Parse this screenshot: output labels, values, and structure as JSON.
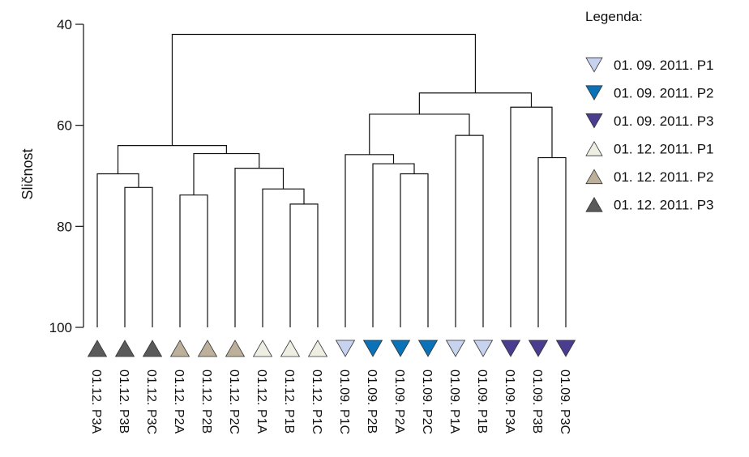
{
  "chart_data": {
    "type": "dendrogram",
    "ylabel": "Sličnost",
    "yticks": [
      40,
      60,
      80,
      100
    ],
    "ylim": [
      40,
      100
    ],
    "y_inverted": true,
    "legend_title": "Legenda:",
    "legend": [
      {
        "group": "g1",
        "label": "01. 09. 2011. P1",
        "shape": "triangle-down",
        "color": "#c7d2ee"
      },
      {
        "group": "g2",
        "label": "01. 09. 2011. P2",
        "shape": "triangle-down",
        "color": "#0a72b8"
      },
      {
        "group": "g3",
        "label": "01. 09. 2011. P3",
        "shape": "triangle-down",
        "color": "#4a3c8f"
      },
      {
        "group": "g4",
        "label": "01. 12. 2011. P1",
        "shape": "triangle-up",
        "color": "#efeee2"
      },
      {
        "group": "g5",
        "label": "01. 12. 2011. P2",
        "shape": "triangle-up",
        "color": "#bcb09a"
      },
      {
        "group": "g6",
        "label": "01. 12. 2011. P3",
        "shape": "triangle-up",
        "color": "#5a5a5a"
      }
    ],
    "leaves": [
      {
        "label": "01.12. P3A",
        "group": "g6"
      },
      {
        "label": "01.12. P3B",
        "group": "g6"
      },
      {
        "label": "01.12. P3C",
        "group": "g6"
      },
      {
        "label": "01.12. P2A",
        "group": "g5"
      },
      {
        "label": "01.12. P2B",
        "group": "g5"
      },
      {
        "label": "01.12. P2C",
        "group": "g5"
      },
      {
        "label": "01.12. P1A",
        "group": "g4"
      },
      {
        "label": "01.12. P1B",
        "group": "g4"
      },
      {
        "label": "01.12. P1C",
        "group": "g4"
      },
      {
        "label": "01.09. P1C",
        "group": "g1"
      },
      {
        "label": "01.09. P2B",
        "group": "g2"
      },
      {
        "label": "01.09. P2A",
        "group": "g2"
      },
      {
        "label": "01.09. P2C",
        "group": "g2"
      },
      {
        "label": "01.09. P1A",
        "group": "g1"
      },
      {
        "label": "01.09. P1B",
        "group": "g1"
      },
      {
        "label": "01.09. P3A",
        "group": "g3"
      },
      {
        "label": "01.09. P3B",
        "group": "g3"
      },
      {
        "label": "01.09. P3C",
        "group": "g3"
      }
    ],
    "merges": [
      {
        "id": "m1",
        "left": 1,
        "right": 2,
        "height": 72.3
      },
      {
        "id": "m2",
        "left": 0,
        "right": "m1",
        "height": 69.6
      },
      {
        "id": "m3",
        "left": 7,
        "right": 8,
        "height": 75.6
      },
      {
        "id": "m4",
        "left": 6,
        "right": "m3",
        "height": 72.6
      },
      {
        "id": "m5",
        "left": 5,
        "right": "m4",
        "height": 68.5
      },
      {
        "id": "m6",
        "left": 3,
        "right": 4,
        "height": 73.8
      },
      {
        "id": "m7",
        "left": "m6",
        "right": "m5",
        "height": 65.6
      },
      {
        "id": "m8",
        "left": "m2",
        "right": "m7",
        "height": 64.0
      },
      {
        "id": "m9",
        "left": 11,
        "right": 12,
        "height": 69.6
      },
      {
        "id": "m10",
        "left": 10,
        "right": "m9",
        "height": 67.6
      },
      {
        "id": "m11",
        "left": 9,
        "right": "m10",
        "height": 65.8
      },
      {
        "id": "m12",
        "left": 13,
        "right": 14,
        "height": 62.0
      },
      {
        "id": "m13",
        "left": "m11",
        "right": "m12",
        "height": 57.8
      },
      {
        "id": "m14",
        "left": 16,
        "right": 17,
        "height": 66.4
      },
      {
        "id": "m15",
        "left": 15,
        "right": "m14",
        "height": 56.4
      },
      {
        "id": "m16",
        "left": "m13",
        "right": "m15",
        "height": 53.6
      },
      {
        "id": "m17",
        "left": "m8",
        "right": "m16",
        "height": 42.0
      }
    ]
  }
}
